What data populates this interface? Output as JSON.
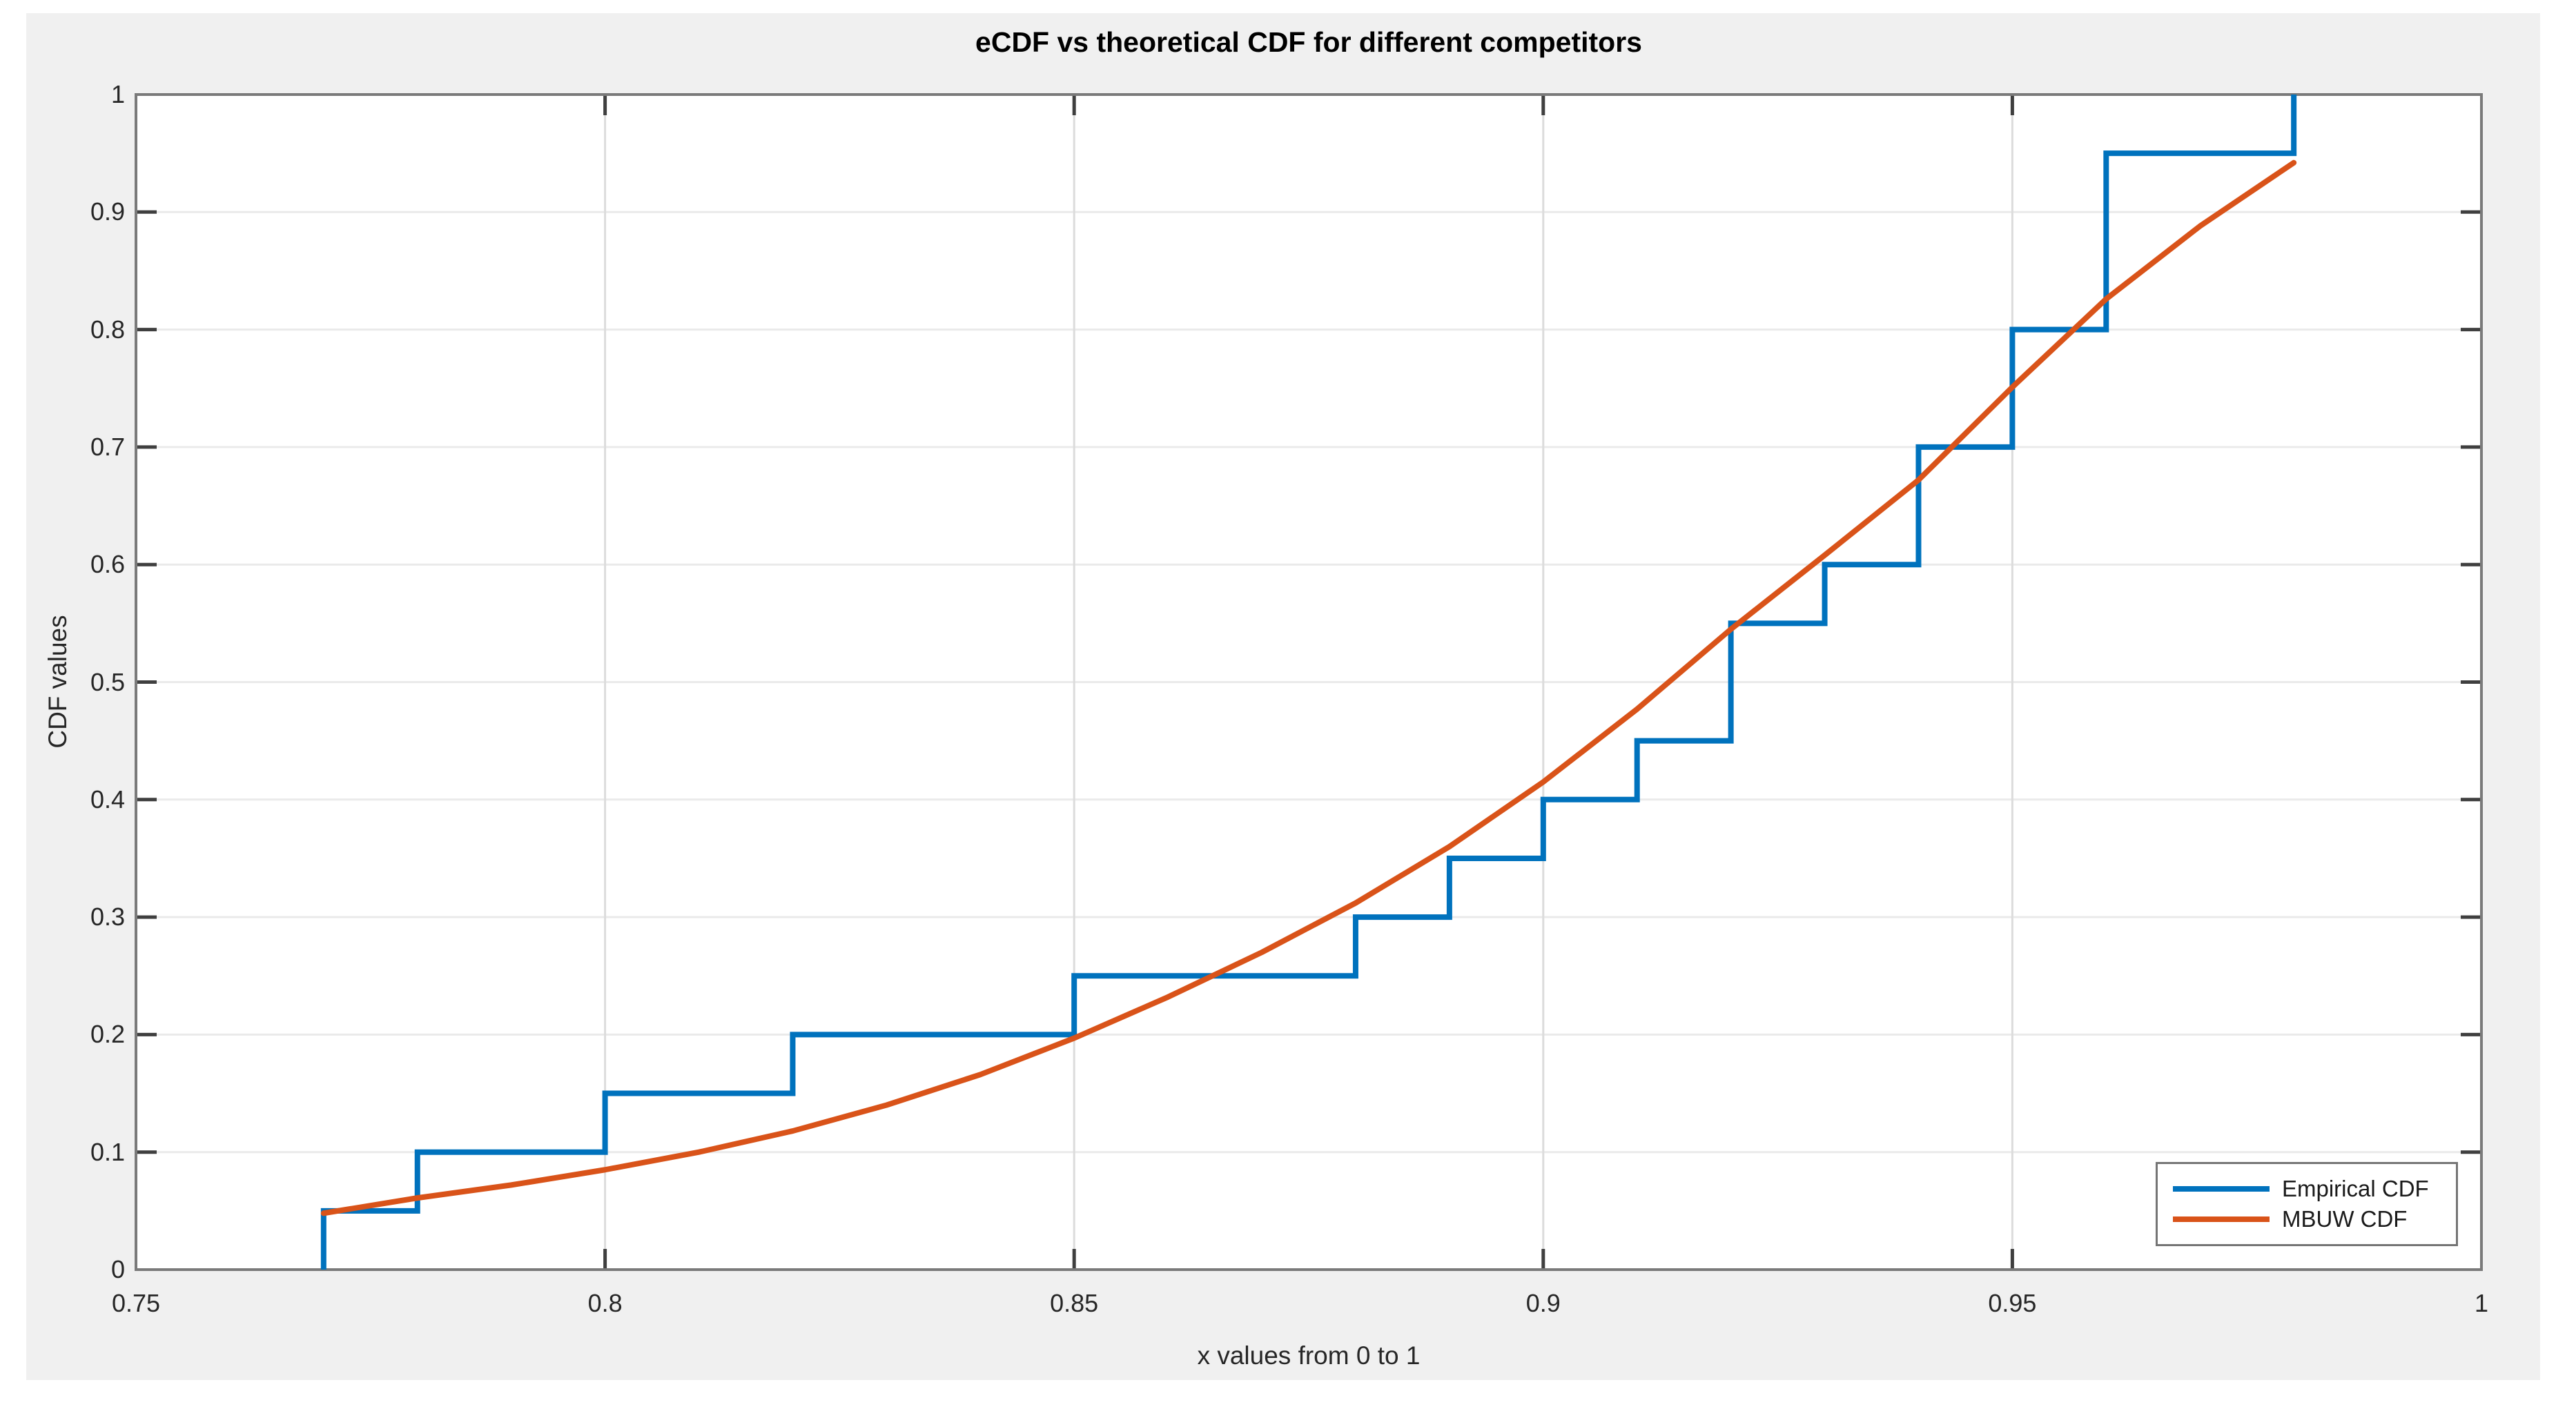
{
  "figure": {
    "background": "#FFFFFF",
    "panel_background": "#F0F0F0",
    "plot_background": "#FFFFFF",
    "spine_color": "#7A7A7A",
    "grid_color_vertical": "#DCDCDC",
    "grid_color_horizontal": "#EAEAEA",
    "tick_mark_color": "#3F3F3F",
    "text_color": "#262626",
    "line_width": 8
  },
  "chart_data": {
    "type": "line",
    "title": "eCDF vs theoretical CDF for different competitors",
    "xlabel": "x values from 0 to 1",
    "ylabel": "CDF values",
    "xlim": [
      0.75,
      1
    ],
    "ylim": [
      0,
      1
    ],
    "grid": true,
    "legend_position": "bottom-right",
    "xticks": [
      {
        "v": 0.75,
        "label": "0.75"
      },
      {
        "v": 0.8,
        "label": "0.8"
      },
      {
        "v": 0.85,
        "label": "0.85"
      },
      {
        "v": 0.9,
        "label": "0.9"
      },
      {
        "v": 0.95,
        "label": "0.95"
      },
      {
        "v": 1,
        "label": "1"
      }
    ],
    "yticks": [
      {
        "v": 0,
        "label": "0"
      },
      {
        "v": 0.1,
        "label": "0.1"
      },
      {
        "v": 0.2,
        "label": "0.2"
      },
      {
        "v": 0.3,
        "label": "0.3"
      },
      {
        "v": 0.4,
        "label": "0.4"
      },
      {
        "v": 0.5,
        "label": "0.5"
      },
      {
        "v": 0.6,
        "label": "0.6"
      },
      {
        "v": 0.7,
        "label": "0.7"
      },
      {
        "v": 0.8,
        "label": "0.8"
      },
      {
        "v": 0.9,
        "label": "0.9"
      },
      {
        "v": 1,
        "label": "1"
      }
    ],
    "series": [
      {
        "name": "Empirical CDF",
        "color": "#0072BD",
        "type": "step",
        "start_x": 0.77,
        "start_y": 0,
        "steps": [
          [
            0.77,
            0.05
          ],
          [
            0.78,
            0.1
          ],
          [
            0.8,
            0.15
          ],
          [
            0.82,
            0.2
          ],
          [
            0.85,
            0.25
          ],
          [
            0.88,
            0.3
          ],
          [
            0.89,
            0.35
          ],
          [
            0.9,
            0.4
          ],
          [
            0.91,
            0.45
          ],
          [
            0.92,
            0.55
          ],
          [
            0.93,
            0.6
          ],
          [
            0.94,
            0.7
          ],
          [
            0.95,
            0.8
          ],
          [
            0.96,
            0.95
          ],
          [
            0.98,
            1.0
          ]
        ],
        "samples": [
          0.77,
          0.78,
          0.8,
          0.82,
          0.85,
          0.88,
          0.89,
          0.9,
          0.91,
          0.92,
          0.92,
          0.93,
          0.94,
          0.94,
          0.95,
          0.95,
          0.96,
          0.96,
          0.96,
          0.98
        ]
      },
      {
        "name": "MBUW CDF",
        "color": "#D95319",
        "type": "line",
        "points": [
          [
            0.77,
            0.048
          ],
          [
            0.78,
            0.061
          ],
          [
            0.79,
            0.072
          ],
          [
            0.8,
            0.085
          ],
          [
            0.81,
            0.1
          ],
          [
            0.82,
            0.118
          ],
          [
            0.83,
            0.14
          ],
          [
            0.84,
            0.166
          ],
          [
            0.85,
            0.197
          ],
          [
            0.86,
            0.232
          ],
          [
            0.87,
            0.27
          ],
          [
            0.88,
            0.312
          ],
          [
            0.89,
            0.36
          ],
          [
            0.9,
            0.415
          ],
          [
            0.91,
            0.477
          ],
          [
            0.92,
            0.545
          ],
          [
            0.93,
            0.608
          ],
          [
            0.94,
            0.672
          ],
          [
            0.95,
            0.751
          ],
          [
            0.96,
            0.826
          ],
          [
            0.97,
            0.888
          ],
          [
            0.98,
            0.942
          ]
        ]
      }
    ]
  }
}
